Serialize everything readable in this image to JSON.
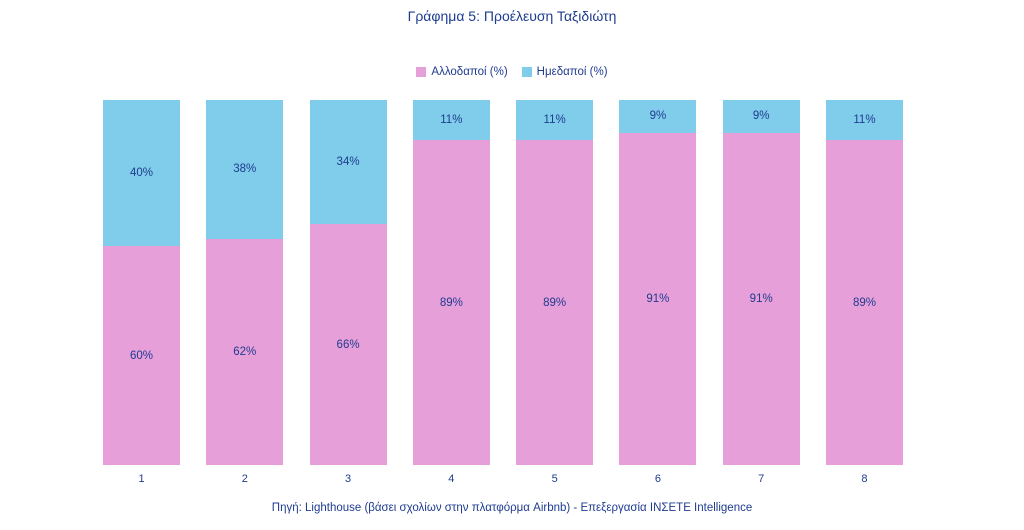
{
  "title": "Γράφημα 5: Προέλευση Ταξιδιώτη",
  "footer": "Πηγή: Lighthouse (βάσει σχολίων στην πλατφόρμα Airbnb) - Επεξεργασία ΙΝΣΕΤΕ Intelligence",
  "colors": {
    "foreign_pink": "#e79fd9",
    "domestic_blue": "#7fcdea",
    "text_navy": "#1f3c90",
    "background": "#ffffff"
  },
  "chart_data": {
    "type": "bar",
    "stacked": true,
    "orientation": "vertical",
    "title": "Γράφημα 5: Προέλευση Ταξιδιώτη",
    "xlabel": "",
    "ylabel": "",
    "ylim": [
      0,
      100
    ],
    "grid": false,
    "legend_position": "top",
    "value_suffix": "%",
    "categories": [
      "1",
      "2",
      "3",
      "4",
      "5",
      "6",
      "7",
      "8"
    ],
    "series": [
      {
        "name": "Αλλοδαποί (%)",
        "color": "#e79fd9",
        "values": [
          60,
          62,
          66,
          89,
          89,
          91,
          91,
          89
        ]
      },
      {
        "name": "Ημεδαποί (%)",
        "color": "#7fcdea",
        "values": [
          40,
          38,
          34,
          11,
          11,
          9,
          9,
          11
        ]
      }
    ]
  }
}
